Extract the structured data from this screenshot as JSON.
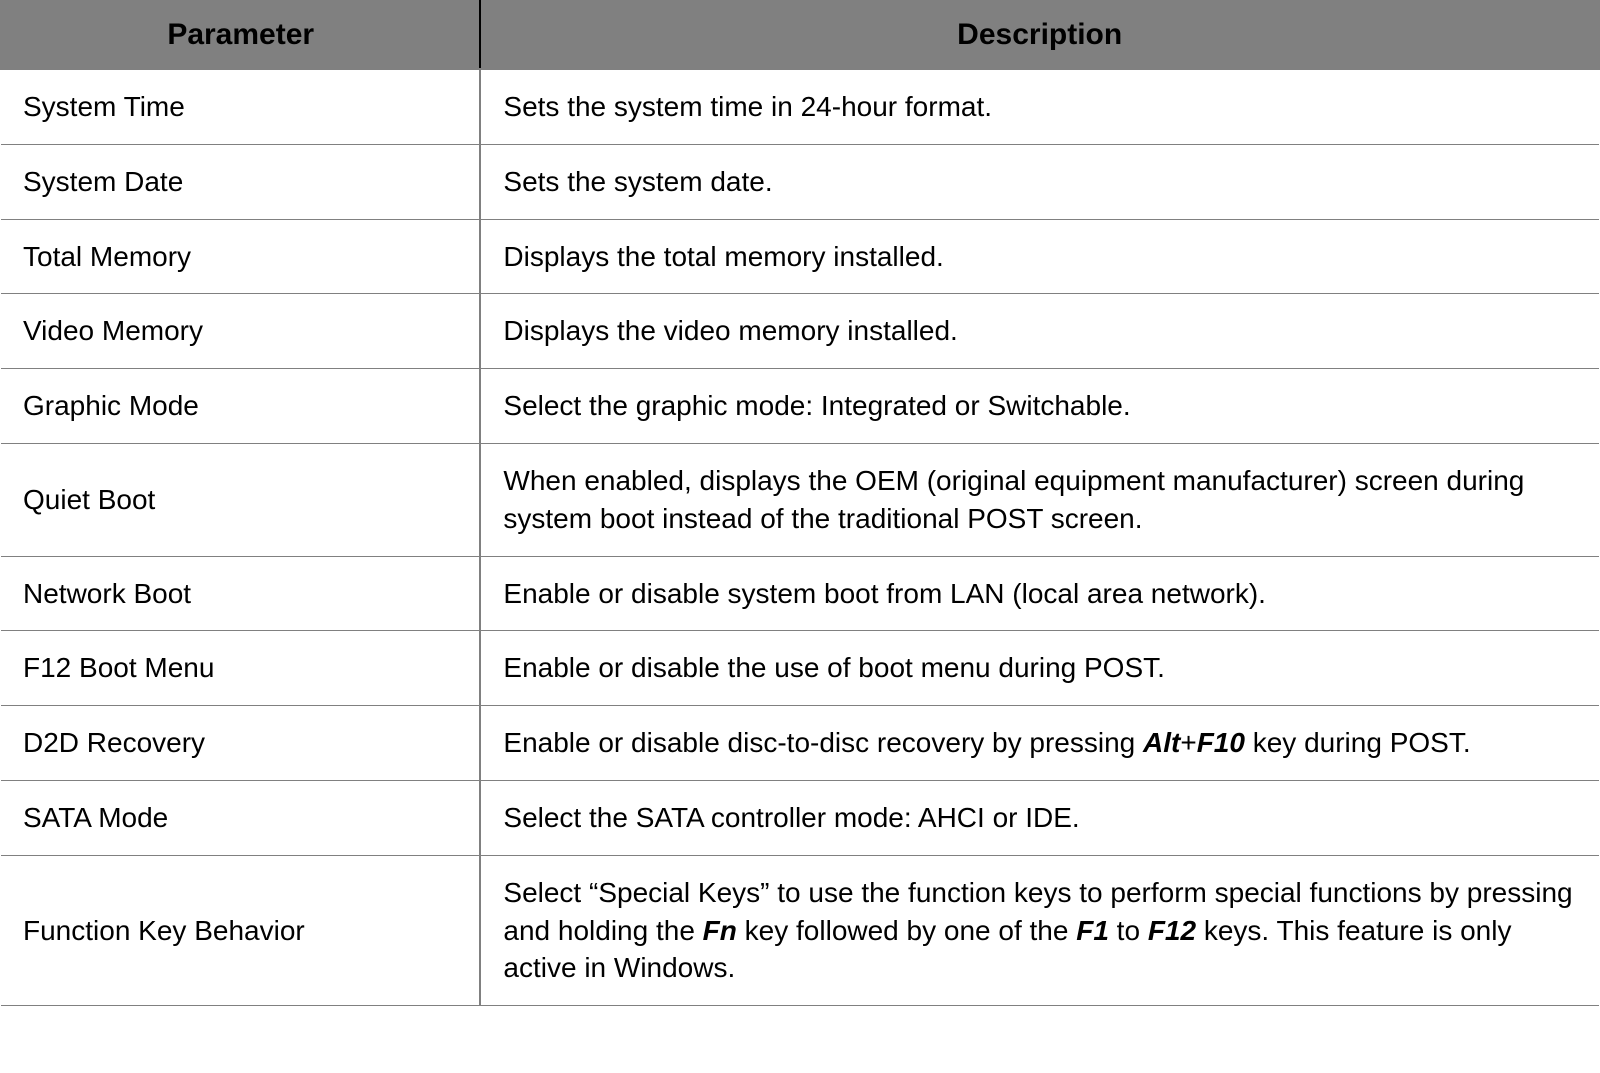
{
  "table": {
    "columns": [
      "Parameter",
      "Description"
    ],
    "header_bg_color": "#808080",
    "header_text_color": "#000000",
    "header_fontsize": 30,
    "cell_fontsize": 28,
    "border_color": "#808080",
    "col_widths_pct": [
      30,
      70
    ],
    "rows": [
      {
        "param": "System Time",
        "desc_parts": [
          {
            "text": "Sets the system time in 24-hour format.",
            "style": "normal"
          }
        ]
      },
      {
        "param": "System Date",
        "desc_parts": [
          {
            "text": "Sets the system date.",
            "style": "normal"
          }
        ]
      },
      {
        "param": "Total Memory",
        "desc_parts": [
          {
            "text": "Displays the total memory installed.",
            "style": "normal"
          }
        ]
      },
      {
        "param": "Video Memory",
        "desc_parts": [
          {
            "text": "Displays the video memory installed.",
            "style": "normal"
          }
        ]
      },
      {
        "param": "Graphic Mode",
        "desc_parts": [
          {
            "text": "Select the graphic mode: Integrated or Switchable.",
            "style": "normal"
          }
        ]
      },
      {
        "param": "Quiet Boot",
        "desc_parts": [
          {
            "text": "When enabled, displays the OEM (original equipment manufacturer) screen during system boot instead of the traditional POST screen.",
            "style": "normal"
          }
        ]
      },
      {
        "param": "Network Boot",
        "desc_parts": [
          {
            "text": "Enable or disable system boot from LAN (local area network).",
            "style": "normal"
          }
        ]
      },
      {
        "param": "F12 Boot Menu",
        "desc_parts": [
          {
            "text": "Enable or disable the use of boot menu during POST.",
            "style": "normal"
          }
        ]
      },
      {
        "param": "D2D Recovery",
        "desc_parts": [
          {
            "text": "Enable or disable disc-to-disc recovery by pressing ",
            "style": "normal"
          },
          {
            "text": "Alt",
            "style": "bold-italic"
          },
          {
            "text": "+",
            "style": "normal"
          },
          {
            "text": "F10",
            "style": "bold-italic"
          },
          {
            "text": " key during POST.",
            "style": "normal"
          }
        ]
      },
      {
        "param": "SATA Mode",
        "desc_parts": [
          {
            "text": "Select the SATA controller mode: AHCI or IDE.",
            "style": "normal"
          }
        ]
      },
      {
        "param": "Function Key Behavior",
        "desc_parts": [
          {
            "text": "Select “Special Keys” to use the function keys to perform special functions by pressing and holding the ",
            "style": "normal"
          },
          {
            "text": "Fn",
            "style": "bold-italic"
          },
          {
            "text": " key followed by one of the ",
            "style": "normal"
          },
          {
            "text": "F1",
            "style": "bold-italic"
          },
          {
            "text": " to ",
            "style": "normal"
          },
          {
            "text": "F12",
            "style": "bold-italic"
          },
          {
            "text": " keys. This feature is only active in Windows.",
            "style": "normal"
          }
        ]
      }
    ]
  }
}
